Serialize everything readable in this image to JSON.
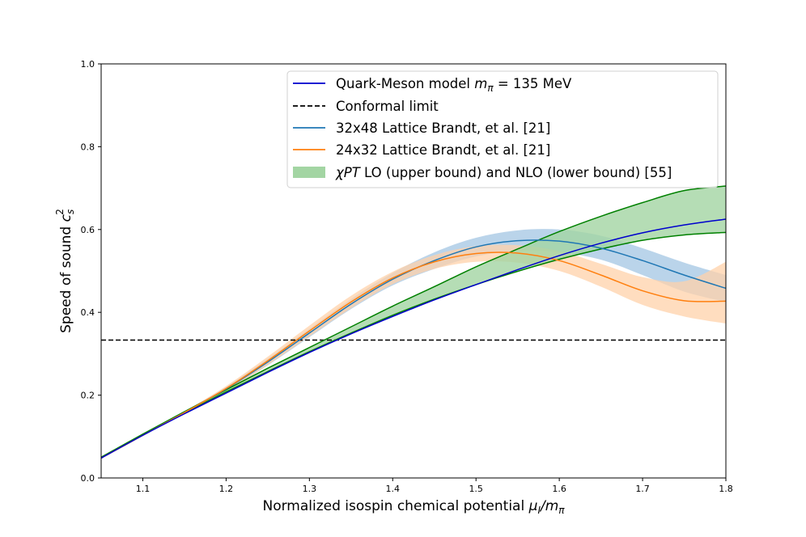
{
  "chart_data": {
    "type": "line",
    "xlabel": "Normalized isospin chemical potential μ_I/m_π",
    "xlabel_main": "Normalized isospin chemical potential ",
    "xlabel_math": "μ",
    "xlabel_sub": "I",
    "xlabel_rest": "/m",
    "xlabel_sub2": "π",
    "ylabel": "Speed of sound c_s^2",
    "ylabel_main": "Speed of sound ",
    "ylabel_math": "c",
    "ylabel_sub": "s",
    "ylabel_sup": "2",
    "xlim": [
      1.05,
      1.8
    ],
    "ylim": [
      0.0,
      1.0
    ],
    "xticks": [
      "1.1",
      "1.2",
      "1.3",
      "1.4",
      "1.5",
      "1.6",
      "1.7",
      "1.8"
    ],
    "yticks": [
      "0.0",
      "0.2",
      "0.4",
      "0.6",
      "0.8",
      "1.0"
    ],
    "legend_position": "top-right",
    "series": [
      {
        "name": "Quark-Meson model",
        "legend_main": "Quark-Meson model ",
        "legend_math": "m",
        "legend_sub": "π",
        "legend_rest": " = 135 MeV",
        "color": "#0000cd",
        "style": "solid",
        "x": [
          1.05,
          1.1,
          1.15,
          1.2,
          1.25,
          1.3,
          1.35,
          1.4,
          1.45,
          1.5,
          1.55,
          1.6,
          1.65,
          1.7,
          1.75,
          1.8
        ],
        "y": [
          0.048,
          0.103,
          0.155,
          0.205,
          0.255,
          0.303,
          0.348,
          0.39,
          0.43,
          0.467,
          0.503,
          0.537,
          0.567,
          0.592,
          0.611,
          0.625
        ]
      },
      {
        "name": "Conformal limit",
        "color": "#000000",
        "style": "dashed",
        "x": [
          1.05,
          1.8
        ],
        "y": [
          0.333,
          0.333
        ]
      },
      {
        "name": "32x48 Lattice Brandt, et al. [21]",
        "color": "#1f77b4",
        "style": "solid",
        "x": [
          1.05,
          1.1,
          1.15,
          1.2,
          1.25,
          1.3,
          1.35,
          1.4,
          1.45,
          1.5,
          1.55,
          1.6,
          1.65,
          1.7,
          1.75,
          1.8
        ],
        "y": [
          0.048,
          0.103,
          0.158,
          0.215,
          0.28,
          0.35,
          0.42,
          0.48,
          0.525,
          0.558,
          0.573,
          0.572,
          0.555,
          0.525,
          0.49,
          0.458
        ],
        "band_lower": [
          0.048,
          0.103,
          0.156,
          0.21,
          0.272,
          0.34,
          0.408,
          0.465,
          0.505,
          0.535,
          0.548,
          0.545,
          0.527,
          0.49,
          0.45,
          0.425
        ],
        "band_upper": [
          0.048,
          0.103,
          0.16,
          0.22,
          0.288,
          0.36,
          0.432,
          0.495,
          0.545,
          0.58,
          0.598,
          0.6,
          0.585,
          0.555,
          0.52,
          0.49
        ],
        "band_color": "#aecde6"
      },
      {
        "name": "24x32 Lattice Brandt, et al. [21]",
        "color": "#ff7f0e",
        "style": "solid",
        "x": [
          1.05,
          1.1,
          1.15,
          1.2,
          1.25,
          1.3,
          1.35,
          1.4,
          1.45,
          1.5,
          1.55,
          1.6,
          1.65,
          1.7,
          1.75,
          1.8
        ],
        "y": [
          0.048,
          0.103,
          0.158,
          0.216,
          0.283,
          0.355,
          0.425,
          0.483,
          0.522,
          0.542,
          0.543,
          0.525,
          0.49,
          0.452,
          0.428,
          0.427
        ],
        "band_lower": [
          0.048,
          0.103,
          0.155,
          0.21,
          0.273,
          0.342,
          0.41,
          0.468,
          0.505,
          0.522,
          0.52,
          0.5,
          0.462,
          0.418,
          0.39,
          0.373
        ],
        "band_upper": [
          0.048,
          0.103,
          0.161,
          0.222,
          0.293,
          0.368,
          0.44,
          0.498,
          0.538,
          0.56,
          0.562,
          0.548,
          0.517,
          0.485,
          0.475,
          0.522
        ],
        "band_color": "#ffd2aa"
      },
      {
        "name": "χPT LO (upper bound) and NLO (lower bound) [55]",
        "legend_math": "χPT",
        "legend_rest": " LO (upper bound) and NLO (lower bound) [55]",
        "color": "#008000",
        "fill": "#a3d5a3",
        "style": "band",
        "x": [
          1.05,
          1.1,
          1.15,
          1.2,
          1.25,
          1.3,
          1.35,
          1.4,
          1.45,
          1.5,
          1.55,
          1.6,
          1.65,
          1.7,
          1.75,
          1.8
        ],
        "upper": [
          0.05,
          0.106,
          0.16,
          0.213,
          0.265,
          0.315,
          0.365,
          0.415,
          0.462,
          0.51,
          0.553,
          0.595,
          0.632,
          0.665,
          0.694,
          0.705
        ],
        "lower": [
          0.05,
          0.104,
          0.157,
          0.208,
          0.257,
          0.305,
          0.35,
          0.393,
          0.432,
          0.467,
          0.499,
          0.528,
          0.553,
          0.574,
          0.587,
          0.593
        ]
      }
    ]
  }
}
